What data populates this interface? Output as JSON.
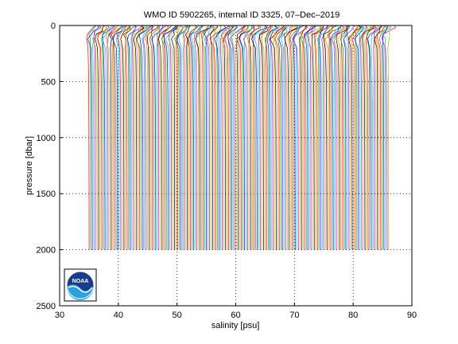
{
  "chart_data": {
    "type": "line",
    "title": "WMO ID 5902265, internal ID 3325, 07–Dec–2019",
    "xlabel": "salinity [psu]",
    "ylabel": "pressure [dbar]",
    "xlim": [
      30,
      90
    ],
    "ylim": [
      0,
      2500
    ],
    "y_reversed": true,
    "grid": true,
    "xticks": [
      30,
      40,
      50,
      60,
      70,
      80,
      90
    ],
    "yticks": [
      0,
      500,
      1000,
      1500,
      2000,
      2500
    ],
    "profile_count": 190,
    "offset_per_profile": 0.27,
    "first_profile_salinity_deep": 35.0,
    "max_pressure": 2000,
    "series_colors": [
      "#ff0000",
      "#00a000",
      "#0000ff",
      "#00c0c0",
      "#c000c0",
      "#b0b000",
      "#000000",
      "#ff8000"
    ],
    "profile_shape": {
      "pressure": [
        0,
        20,
        50,
        80,
        120,
        200,
        300,
        500,
        800,
        1200,
        1600,
        2000
      ],
      "salinity_offset": [
        0.9,
        0.8,
        0.3,
        -0.2,
        -0.35,
        -0.15,
        -0.1,
        -0.05,
        -0.02,
        0.0,
        0.01,
        0.02
      ]
    }
  },
  "logo": {
    "name": "NOAA"
  }
}
